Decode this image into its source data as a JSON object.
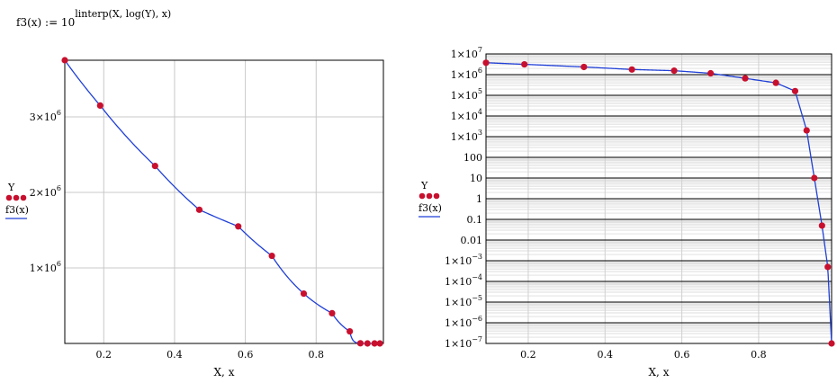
{
  "formula": {
    "lhs": "f3(x) := 10",
    "exponent": "linterp(X, log(Y), x)"
  },
  "chart_data": [
    {
      "type": "line",
      "scale": "linear",
      "xlabel": "X, x",
      "xlim": [
        0.09,
        0.99
      ],
      "ylim": [
        0,
        3750000
      ],
      "x_ticks": [
        {
          "v": 0.2,
          "label": "0.2"
        },
        {
          "v": 0.4,
          "label": "0.4"
        },
        {
          "v": 0.6,
          "label": "0.6"
        },
        {
          "v": 0.8,
          "label": "0.8"
        }
      ],
      "y_ticks": [
        {
          "v": 1000000,
          "base": "1×10",
          "exp": "6"
        },
        {
          "v": 2000000,
          "base": "2×10",
          "exp": "6"
        },
        {
          "v": 3000000,
          "base": "3×10",
          "exp": "6"
        }
      ],
      "grid": true,
      "legend": {
        "position": "left",
        "points_name": "Y",
        "line_name": "f3(x)"
      },
      "colors": {
        "points": "#c8102e",
        "line": "#1f3fd6",
        "grid": "#c8c8c8"
      },
      "series": [
        {
          "name": "Y",
          "style": "points",
          "x": [
            0.09,
            0.19,
            0.345,
            0.47,
            0.58,
            0.675,
            0.765,
            0.845,
            0.895,
            0.925,
            0.945,
            0.965,
            0.98
          ],
          "y": [
            3750000,
            3150000,
            2350000,
            1770000,
            1550000,
            1160000,
            660000,
            400000,
            160000,
            2000,
            10,
            0.05,
            0.0005
          ]
        },
        {
          "name": "f3(x)",
          "style": "line"
        }
      ]
    },
    {
      "type": "line",
      "scale": "log",
      "xlabel": "X, x",
      "xlim": [
        0.09,
        0.99
      ],
      "ylim": [
        -7,
        7
      ],
      "x_ticks": [
        {
          "v": 0.2,
          "label": "0.2"
        },
        {
          "v": 0.4,
          "label": "0.4"
        },
        {
          "v": 0.6,
          "label": "0.6"
        },
        {
          "v": 0.8,
          "label": "0.8"
        }
      ],
      "y_ticks": [
        {
          "v": 7,
          "base": "1×10",
          "exp": "7"
        },
        {
          "v": 6,
          "base": "1×10",
          "exp": "6"
        },
        {
          "v": 5,
          "base": "1×10",
          "exp": "5"
        },
        {
          "v": 4,
          "base": "1×10",
          "exp": "4"
        },
        {
          "v": 3,
          "base": "1×10",
          "exp": "3"
        },
        {
          "v": 2,
          "base": "100",
          "exp": ""
        },
        {
          "v": 1,
          "base": "10",
          "exp": ""
        },
        {
          "v": 0,
          "base": "1",
          "exp": ""
        },
        {
          "v": -1,
          "base": "0.1",
          "exp": ""
        },
        {
          "v": -2,
          "base": "0.01",
          "exp": ""
        },
        {
          "v": -3,
          "base": "1×10",
          "exp": "−3"
        },
        {
          "v": -4,
          "base": "1×10",
          "exp": "−4"
        },
        {
          "v": -5,
          "base": "1×10",
          "exp": "−5"
        },
        {
          "v": -6,
          "base": "1×10",
          "exp": "−6"
        },
        {
          "v": -7,
          "base": "1×10",
          "exp": "−7"
        }
      ],
      "grid": true,
      "legend": {
        "position": "left",
        "points_name": "Y",
        "line_name": "f3(x)"
      },
      "colors": {
        "points": "#c8102e",
        "line": "#1f3fd6",
        "grid": "#000000",
        "minor_grid": "#d0d0d0"
      },
      "series": [
        {
          "name": "Y",
          "style": "points",
          "x": [
            0.09,
            0.19,
            0.345,
            0.47,
            0.58,
            0.675,
            0.765,
            0.845,
            0.895,
            0.925,
            0.945,
            0.965,
            0.98,
            0.99
          ],
          "y": [
            3750000,
            3150000,
            2350000,
            1770000,
            1550000,
            1160000,
            660000,
            400000,
            160000,
            2000,
            10,
            0.05,
            0.0005,
            1e-07
          ]
        },
        {
          "name": "f3(x)",
          "style": "line"
        }
      ]
    }
  ]
}
